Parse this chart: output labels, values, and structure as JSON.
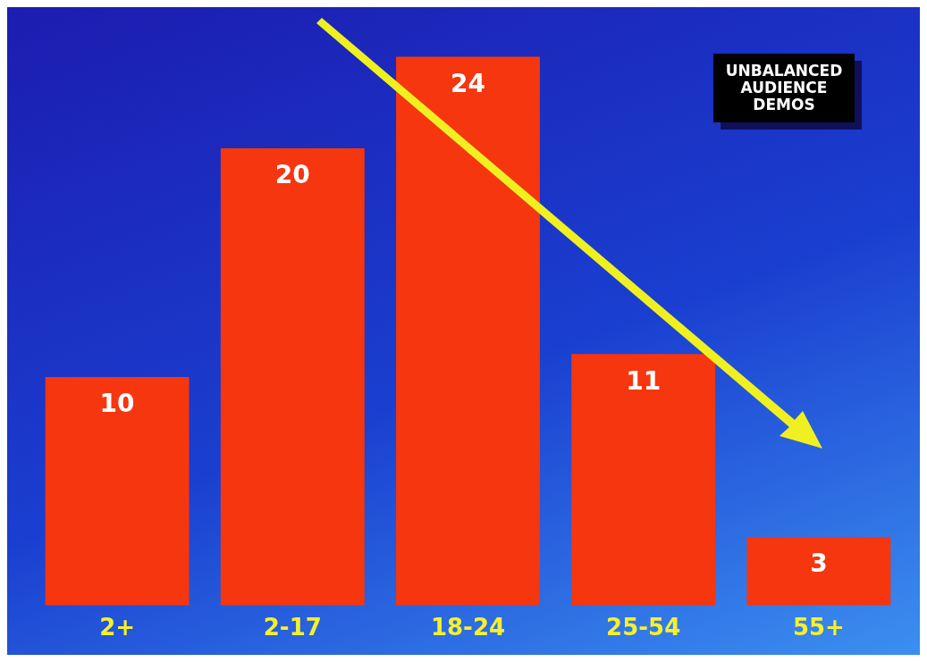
{
  "chart_data": {
    "type": "bar",
    "title": "UNBALANCED AUDIENCE DEMOS",
    "categories": [
      "2+",
      "2-17",
      "18-24",
      "25-54",
      "55+"
    ],
    "values": [
      10,
      20,
      24,
      11,
      3
    ],
    "color": "#f5360f",
    "data_labels": true,
    "legend": false
  }
}
